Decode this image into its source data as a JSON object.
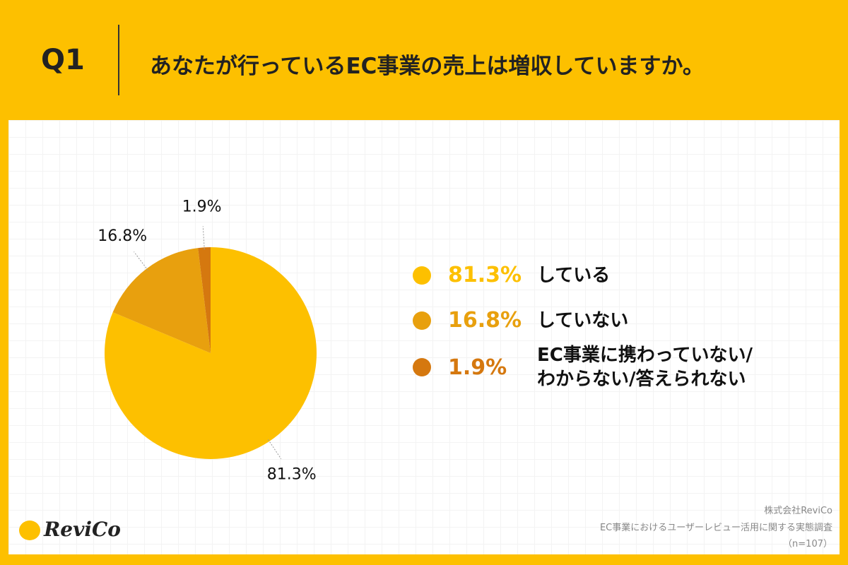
{
  "header": {
    "question": "Q1",
    "title": "あなたが行っているEC事業の売上は増収していますか。"
  },
  "chart_data": {
    "type": "pie",
    "categories": [
      "している",
      "していない",
      "EC事業に携わっていない/\nわからない/答えられない"
    ],
    "values": [
      81.3,
      16.8,
      1.9
    ],
    "value_labels": [
      "81.3%",
      "16.8%",
      "1.9%"
    ],
    "colors": [
      "#fdc000",
      "#e8a00e",
      "#d5780f"
    ]
  },
  "footer": {
    "company": "株式会社ReviCo",
    "survey": "EC事業におけるユーザーレビュー活用に関する実態調査",
    "sample": "（n=107）",
    "logo": "ReviCo"
  }
}
